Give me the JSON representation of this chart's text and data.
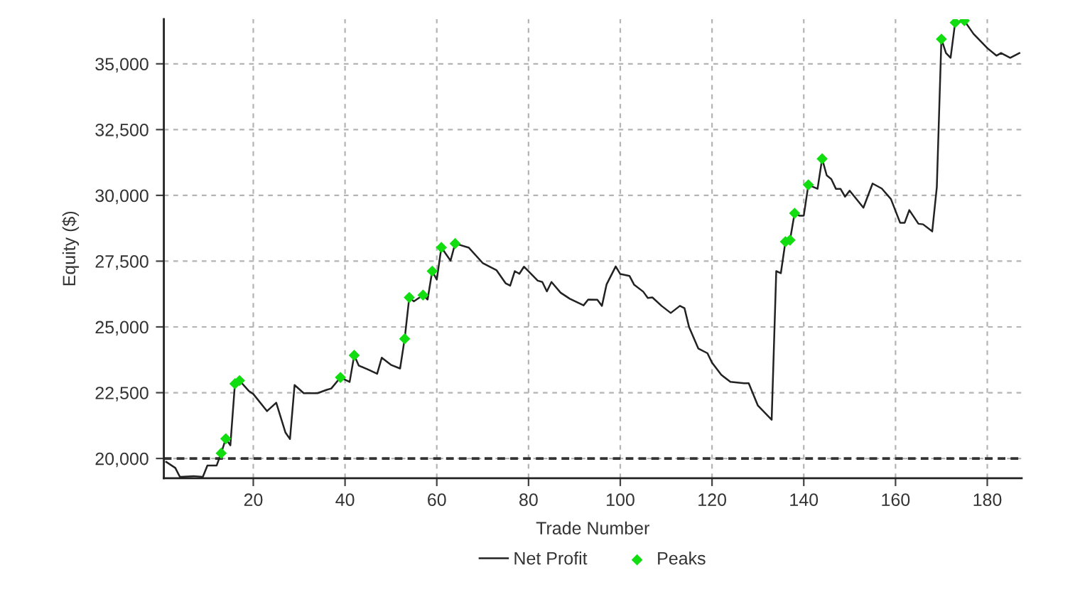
{
  "chart_data": {
    "type": "line",
    "xlabel": "Trade Number",
    "ylabel": "Equity ($)",
    "xlim": [
      0.5,
      187.5
    ],
    "ylim": [
      19250,
      36700
    ],
    "xticks": [
      20,
      40,
      60,
      80,
      100,
      120,
      140,
      160,
      180
    ],
    "yticks": [
      {
        "value": 20000,
        "label": "20,000"
      },
      {
        "value": 22500,
        "label": "22,500"
      },
      {
        "value": 25000,
        "label": "25,000"
      },
      {
        "value": 27500,
        "label": "27,500"
      },
      {
        "value": 30000,
        "label": "30,000"
      },
      {
        "value": 32500,
        "label": "32,500"
      },
      {
        "value": 35000,
        "label": "35,000"
      }
    ],
    "grid": true,
    "legend": "bottom",
    "ref_lines": [
      {
        "axis": "y",
        "value": 20000,
        "color": "#333333",
        "line_style": "dashed"
      }
    ],
    "series": [
      {
        "name": "Net Profit",
        "color": "#222222",
        "marker": "none",
        "line_style": "solid",
        "x": [
          1,
          3,
          4,
          7,
          9,
          10,
          12,
          13,
          14,
          15,
          16,
          17,
          19,
          20,
          23,
          25,
          27,
          28,
          29,
          31,
          34,
          36,
          37,
          39,
          41,
          42,
          43,
          45,
          47,
          48,
          50,
          52,
          53,
          54,
          55,
          57,
          58,
          59,
          60,
          61,
          63,
          64,
          67,
          70,
          73,
          75,
          76,
          77,
          78,
          79,
          82,
          83,
          84,
          85,
          87,
          89,
          92,
          93,
          95,
          96,
          97,
          99,
          100,
          102,
          103,
          105,
          106,
          107,
          109,
          111,
          113,
          114,
          115,
          117,
          119,
          120,
          122,
          124,
          127,
          128,
          130,
          133,
          134,
          135,
          136,
          137,
          138,
          139,
          140,
          141,
          143,
          144,
          145,
          146,
          147,
          148,
          149,
          150,
          153,
          155,
          157,
          159,
          161,
          162,
          163,
          165,
          166,
          168,
          169,
          170,
          171,
          172,
          173,
          175,
          177,
          180,
          182,
          183,
          185,
          187
        ],
        "values": [
          19870,
          19640,
          19300,
          19330,
          19300,
          19730,
          19730,
          20200,
          20750,
          20500,
          22840,
          22960,
          22570,
          22450,
          21800,
          22120,
          20990,
          20740,
          22790,
          22480,
          22480,
          22610,
          22660,
          23080,
          22910,
          23920,
          23530,
          23380,
          23220,
          23830,
          23560,
          23420,
          24550,
          26120,
          25970,
          26210,
          26040,
          27120,
          26800,
          28020,
          27520,
          28170,
          28010,
          27430,
          27160,
          26660,
          26570,
          27120,
          27020,
          27290,
          26760,
          26710,
          26350,
          26710,
          26300,
          26070,
          25820,
          26040,
          26030,
          25800,
          26610,
          27300,
          27010,
          26940,
          26610,
          26340,
          26100,
          26120,
          25800,
          25530,
          25800,
          25710,
          24990,
          24180,
          24000,
          23640,
          23180,
          22910,
          22860,
          22860,
          22010,
          21470,
          27120,
          27040,
          28240,
          28300,
          29320,
          29230,
          29230,
          30400,
          30250,
          31390,
          30760,
          30620,
          30250,
          30250,
          29950,
          30180,
          29530,
          30450,
          30260,
          29860,
          28960,
          28960,
          29440,
          28920,
          28900,
          28630,
          30310,
          35940,
          35410,
          35230,
          36570,
          36640,
          36140,
          35600,
          35310,
          35410,
          35230,
          35410
        ]
      },
      {
        "name": "Peaks",
        "type": "scatter",
        "color": "#11dd11",
        "marker": "diamond",
        "x": [
          13,
          14,
          16,
          17,
          39,
          42,
          53,
          54,
          57,
          59,
          61,
          64,
          136,
          137,
          138,
          141,
          144,
          170,
          173,
          175
        ],
        "values": [
          20200,
          20750,
          22840,
          22960,
          23080,
          23920,
          24550,
          26120,
          26210,
          27120,
          28020,
          28170,
          28240,
          28300,
          29320,
          30400,
          31390,
          35940,
          36570,
          36640
        ]
      }
    ]
  }
}
